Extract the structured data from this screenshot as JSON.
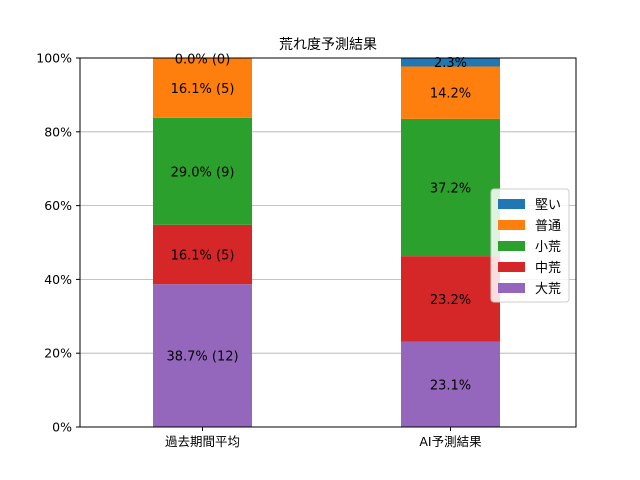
{
  "chart_data": {
    "type": "bar",
    "stacked": true,
    "orientation": "vertical",
    "title": "荒れ度予測結果",
    "xlabel": "",
    "ylabel": "",
    "categories": [
      "過去期間平均",
      "AI予測結果"
    ],
    "ylim": [
      0,
      100
    ],
    "y_ticks": [
      "0%",
      "20%",
      "40%",
      "60%",
      "80%",
      "100%"
    ],
    "y_tick_values": [
      0,
      20,
      40,
      60,
      80,
      100
    ],
    "grid": "horizontal",
    "legend_position": "right",
    "series": [
      {
        "name": "堅い",
        "color": "#1f77b4",
        "values": [
          0.0,
          2.3
        ],
        "labels": [
          "0.0% (0)",
          "2.3%"
        ]
      },
      {
        "name": "普通",
        "color": "#ff7f0e",
        "values": [
          16.1,
          14.2
        ],
        "labels": [
          "16.1% (5)",
          "14.2%"
        ]
      },
      {
        "name": "小荒",
        "color": "#2ca02c",
        "values": [
          29.0,
          37.2
        ],
        "labels": [
          "29.0% (9)",
          "37.2%"
        ]
      },
      {
        "name": "中荒",
        "color": "#d62728",
        "values": [
          16.1,
          23.2
        ],
        "labels": [
          "16.1% (5)",
          "23.2%"
        ]
      },
      {
        "name": "大荒",
        "color": "#9467bd",
        "values": [
          38.7,
          23.1
        ],
        "labels": [
          "38.7% (12)",
          "23.1%"
        ]
      }
    ]
  }
}
